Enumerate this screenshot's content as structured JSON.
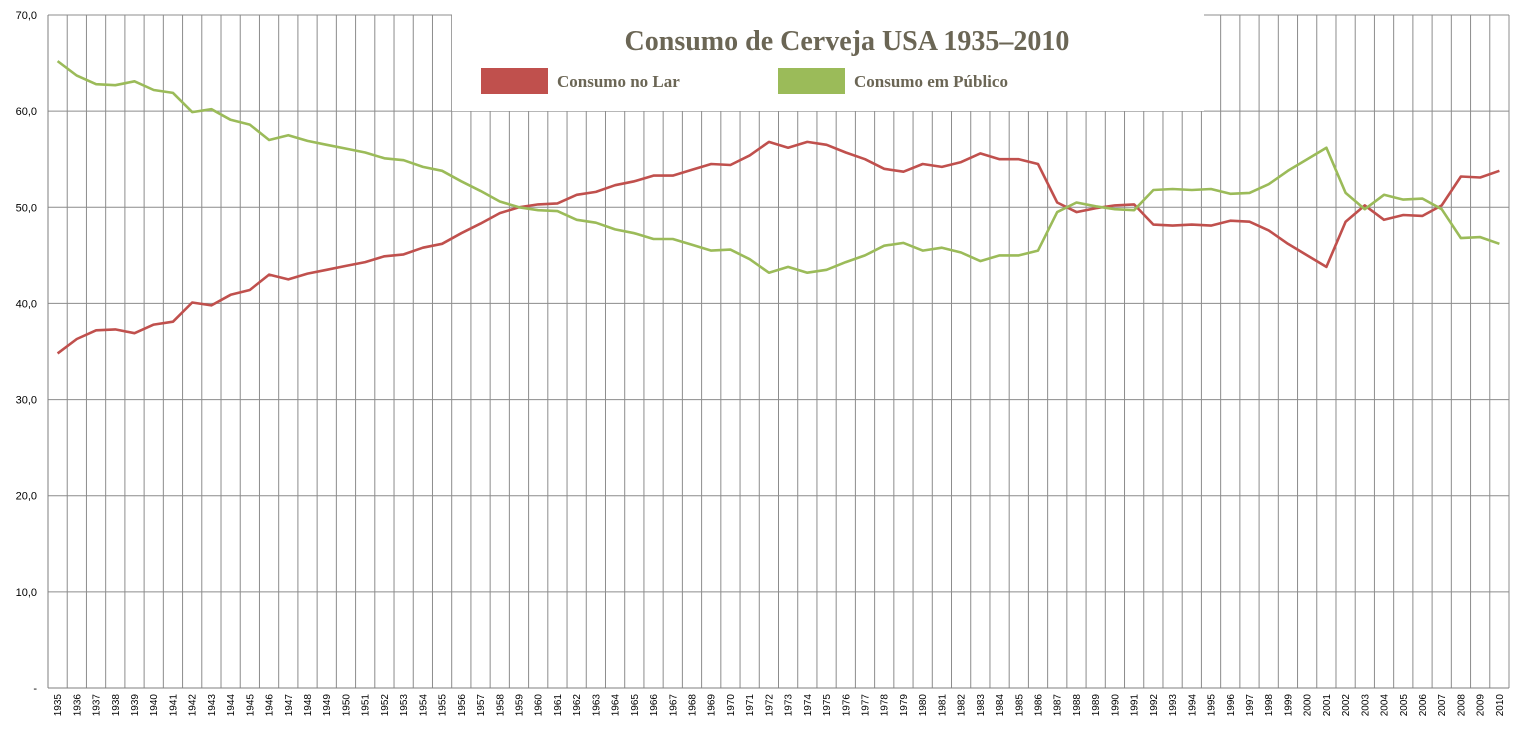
{
  "chart_data": {
    "type": "line",
    "title": "Consumo de Cerveja USA 1935–2010",
    "xlabel": "",
    "ylabel": "",
    "ylim": [
      0,
      70
    ],
    "y_ticks": [
      "-",
      "10,0",
      "20,0",
      "30,0",
      "40,0",
      "50,0",
      "60,0",
      "70,0"
    ],
    "grid": true,
    "legend_position": "top-center",
    "x": [
      1935,
      1936,
      1937,
      1938,
      1939,
      1940,
      1941,
      1942,
      1943,
      1944,
      1945,
      1946,
      1947,
      1948,
      1949,
      1950,
      1951,
      1952,
      1953,
      1954,
      1955,
      1956,
      1957,
      1958,
      1959,
      1960,
      1961,
      1962,
      1963,
      1964,
      1965,
      1966,
      1967,
      1968,
      1969,
      1970,
      1971,
      1972,
      1973,
      1974,
      1975,
      1976,
      1977,
      1978,
      1979,
      1980,
      1981,
      1982,
      1983,
      1984,
      1985,
      1986,
      1987,
      1988,
      1989,
      1990,
      1991,
      1992,
      1993,
      1994,
      1995,
      1996,
      1997,
      1998,
      1999,
      2000,
      2001,
      2002,
      2003,
      2004,
      2005,
      2006,
      2007,
      2008,
      2009,
      2010
    ],
    "series": [
      {
        "name": "Consumo no Lar",
        "color": "#c0504d",
        "values": [
          34.8,
          36.3,
          37.2,
          37.3,
          36.9,
          37.8,
          38.1,
          40.1,
          39.8,
          40.9,
          41.4,
          43.0,
          42.5,
          43.1,
          43.5,
          43.9,
          44.3,
          44.9,
          45.1,
          45.8,
          46.2,
          47.3,
          48.3,
          49.4,
          50.0,
          50.3,
          50.4,
          51.3,
          51.6,
          52.3,
          52.7,
          53.3,
          53.3,
          53.9,
          54.5,
          54.4,
          55.4,
          56.8,
          56.2,
          56.8,
          56.5,
          55.7,
          55.0,
          54.0,
          53.7,
          54.5,
          54.2,
          54.7,
          55.6,
          55.0,
          55.0,
          54.5,
          50.5,
          49.5,
          49.9,
          50.2,
          50.3,
          48.2,
          48.1,
          48.2,
          48.1,
          48.6,
          48.5,
          47.6,
          46.2,
          45.0,
          43.8,
          48.5,
          50.2,
          48.7,
          49.2,
          49.1,
          50.2,
          53.2,
          53.1,
          53.8
        ]
      },
      {
        "name": "Consumo em Público",
        "color": "#9bbb59",
        "values": [
          65.2,
          63.7,
          62.8,
          62.7,
          63.1,
          62.2,
          61.9,
          59.9,
          60.2,
          59.1,
          58.6,
          57.0,
          57.5,
          56.9,
          56.5,
          56.1,
          55.7,
          55.1,
          54.9,
          54.2,
          53.8,
          52.7,
          51.7,
          50.6,
          50.0,
          49.7,
          49.6,
          48.7,
          48.4,
          47.7,
          47.3,
          46.7,
          46.7,
          46.1,
          45.5,
          45.6,
          44.6,
          43.2,
          43.8,
          43.2,
          43.5,
          44.3,
          45.0,
          46.0,
          46.3,
          45.5,
          45.8,
          45.3,
          44.4,
          45.0,
          45.0,
          45.5,
          49.5,
          50.5,
          50.1,
          49.8,
          49.7,
          51.8,
          51.9,
          51.8,
          51.9,
          51.4,
          51.5,
          52.4,
          53.8,
          55.0,
          56.2,
          51.5,
          49.8,
          51.3,
          50.8,
          50.9,
          49.8,
          46.8,
          46.9,
          46.2
        ]
      }
    ]
  }
}
